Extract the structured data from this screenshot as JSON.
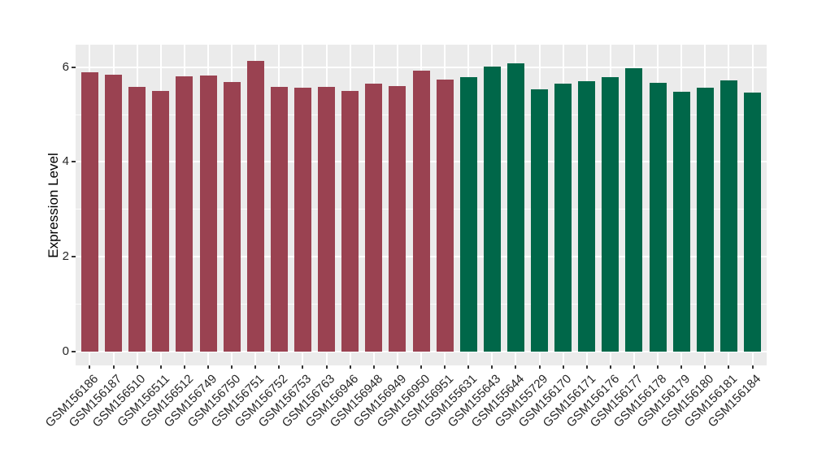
{
  "figure": {
    "background": "#FFFFFF"
  },
  "chart_data": {
    "type": "bar",
    "title": "",
    "xlabel": "",
    "ylabel": "Expression Level",
    "ylim": [
      0,
      6.5
    ],
    "yticks_major": [
      0,
      2,
      4,
      6
    ],
    "yticks_minor": [
      1,
      3,
      5
    ],
    "grid": "on",
    "legend_position": "none",
    "panel_background": "#EBEBEB",
    "gridline_color": "#FFFFFF",
    "categories": [
      "GSM156186",
      "GSM156187",
      "GSM156510",
      "GSM156511",
      "GSM156512",
      "GSM156749",
      "GSM156750",
      "GSM156751",
      "GSM156752",
      "GSM156753",
      "GSM156763",
      "GSM156946",
      "GSM156948",
      "GSM156949",
      "GSM156950",
      "GSM156951",
      "GSM155631",
      "GSM155643",
      "GSM155644",
      "GSM155729",
      "GSM156170",
      "GSM156171",
      "GSM156176",
      "GSM156177",
      "GSM156178",
      "GSM156179",
      "GSM156180",
      "GSM156181",
      "GSM156184"
    ],
    "values": [
      5.89,
      5.85,
      5.59,
      5.51,
      5.81,
      5.83,
      5.69,
      6.14,
      5.59,
      5.57,
      5.59,
      5.5,
      5.66,
      5.6,
      5.93,
      5.74,
      5.8,
      6.02,
      6.09,
      5.53,
      5.65,
      5.71,
      5.79,
      5.98,
      5.67,
      5.49,
      5.57,
      5.72,
      5.47
    ],
    "groups": [
      0,
      0,
      0,
      0,
      0,
      0,
      0,
      0,
      0,
      0,
      0,
      0,
      0,
      0,
      0,
      0,
      1,
      1,
      1,
      1,
      1,
      1,
      1,
      1,
      1,
      1,
      1,
      1,
      1
    ],
    "group_colors": [
      "#9A4251",
      "#006749"
    ]
  }
}
